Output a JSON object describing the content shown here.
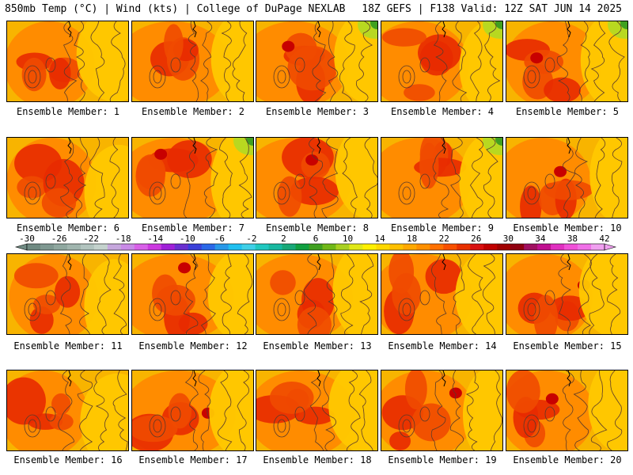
{
  "header": {
    "left": "850mb Temp (°C) | Wind (kts) | College of DuPage NEXLAB",
    "right": "18Z GEFS | F138 Valid: 12Z SAT JUN 14 2025"
  },
  "panels": [
    {
      "label": "Ensemble Member: 1"
    },
    {
      "label": "Ensemble Member: 2"
    },
    {
      "label": "Ensemble Member: 3"
    },
    {
      "label": "Ensemble Member: 4"
    },
    {
      "label": "Ensemble Member: 5"
    },
    {
      "label": "Ensemble Member: 6"
    },
    {
      "label": "Ensemble Member: 7"
    },
    {
      "label": "Ensemble Member: 8"
    },
    {
      "label": "Ensemble Member: 9"
    },
    {
      "label": "Ensemble Member: 10"
    },
    {
      "label": "Ensemble Member: 11"
    },
    {
      "label": "Ensemble Member: 12"
    },
    {
      "label": "Ensemble Member: 13"
    },
    {
      "label": "Ensemble Member: 14"
    },
    {
      "label": "Ensemble Member: 15"
    },
    {
      "label": "Ensemble Member: 16"
    },
    {
      "label": "Ensemble Member: 17"
    },
    {
      "label": "Ensemble Member: 18"
    },
    {
      "label": "Ensemble Member: 19"
    },
    {
      "label": "Ensemble Member: 20"
    }
  ],
  "colorbar": {
    "tick_labels": [
      "-30",
      "-26",
      "-22",
      "-18",
      "-14",
      "-10",
      "-6",
      "-2",
      "2",
      "6",
      "10",
      "14",
      "18",
      "22",
      "26",
      "30",
      "34",
      "38",
      "42"
    ],
    "colors": [
      "#6f8a82",
      "#7f9891",
      "#8fa79f",
      "#a0b5ae",
      "#b2c4bf",
      "#c4d2cd",
      "#c6a7dd",
      "#c98ae6",
      "#d860e8",
      "#cc38e0",
      "#a020d8",
      "#6a30d0",
      "#3a40d8",
      "#2a68e8",
      "#2898e8",
      "#20c0f0",
      "#40d0e8",
      "#20c8c0",
      "#18b8a0",
      "#18a878",
      "#10a040",
      "#40a020",
      "#70b818",
      "#a8d020",
      "#e0e818",
      "#fff000",
      "#ffd800",
      "#ffc000",
      "#ffa800",
      "#ff9000",
      "#ff7000",
      "#f85000",
      "#e83000",
      "#d81010",
      "#c00000",
      "#a00000",
      "#900010",
      "#a01060",
      "#c01090",
      "#e030c0",
      "#f050d8",
      "#f070e8",
      "#f0a0f0"
    ]
  }
}
